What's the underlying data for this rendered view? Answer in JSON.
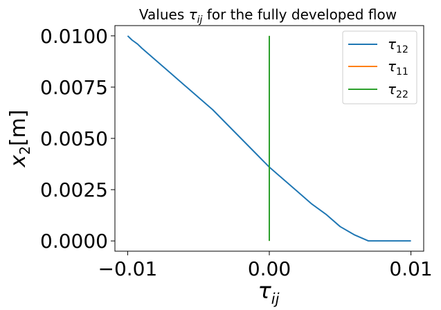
{
  "chart_data": {
    "type": "line",
    "title_prefix": "Values ",
    "title_symbol": "τ",
    "title_symbol_sub": "ij",
    "title_suffix": " for the fully developed flow",
    "xlabel_symbol": "τ",
    "xlabel_sub": "ij",
    "ylabel_symbol": "x",
    "ylabel_sub": "2",
    "ylabel_unit": "[m]",
    "xlim": [
      -0.0109,
      0.0109
    ],
    "ylim": [
      -0.0005,
      0.0105
    ],
    "xticks": [
      -0.01,
      0.0,
      0.01
    ],
    "xtick_labels": [
      "−0.01",
      "0.00",
      "0.01"
    ],
    "yticks": [
      0.0,
      0.0025,
      0.005,
      0.0075,
      0.01
    ],
    "ytick_labels": [
      "0.0000",
      "0.0025",
      "0.0050",
      "0.0075",
      "0.0100"
    ],
    "grid": false,
    "legend_position": "top-right",
    "series": [
      {
        "name_symbol": "τ",
        "name_sub": "12",
        "color": "#1f77b4",
        "x": [
          -0.01,
          -0.0097,
          -0.0093,
          -0.009,
          -0.0085,
          -0.008,
          -0.0075,
          -0.007,
          -0.006,
          -0.005,
          -0.004,
          -0.003,
          -0.002,
          -0.001,
          0.0,
          0.001,
          0.002,
          0.003,
          0.004,
          0.005,
          0.006,
          0.007,
          0.008,
          0.009,
          0.0097,
          0.01
        ],
        "y": [
          0.01,
          0.0098,
          0.0096,
          0.0094,
          0.0091,
          0.0088,
          0.0085,
          0.0082,
          0.0076,
          0.007,
          0.0064,
          0.0057,
          0.005,
          0.0043,
          0.0036,
          0.003,
          0.0024,
          0.0018,
          0.0013,
          0.0007,
          0.0003,
          0.0,
          0.0,
          0.0,
          0.0,
          0.0
        ]
      },
      {
        "name_symbol": "τ",
        "name_sub": "11",
        "color": "#ff7f0e",
        "x": [
          0.0,
          0.0
        ],
        "y": [
          0.0,
          0.01
        ]
      },
      {
        "name_symbol": "τ",
        "name_sub": "22",
        "color": "#2ca02c",
        "x": [
          0.0,
          0.0
        ],
        "y": [
          0.0,
          0.01
        ]
      }
    ]
  }
}
